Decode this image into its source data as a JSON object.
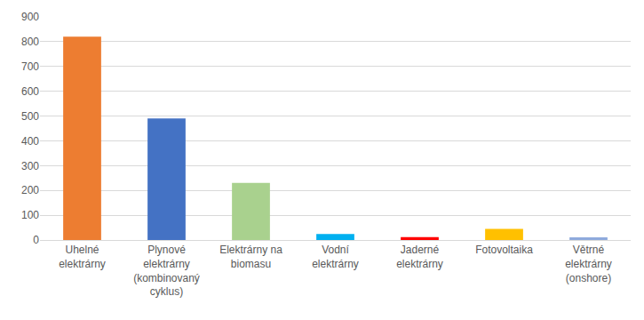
{
  "chart_data": {
    "type": "bar",
    "categories": [
      "Uhelné elektrárny",
      "Plynové elektrárny (kombinovaný cyklus)",
      "Elektrárny na biomasu",
      "Vodní elektrárny",
      "Jaderné elektrárny",
      "Fotovoltaika",
      "Větrné elektrárny (onshore)"
    ],
    "values": [
      820,
      490,
      230,
      24,
      12,
      45,
      11
    ],
    "colors": [
      "#ed7d31",
      "#4472c4",
      "#a9d18e",
      "#00b0f0",
      "#ff0000",
      "#ffc000",
      "#8faadc"
    ],
    "ylim": [
      0,
      900
    ],
    "yticks": [
      0,
      100,
      200,
      300,
      400,
      500,
      600,
      700,
      800,
      900
    ],
    "grid": true
  }
}
